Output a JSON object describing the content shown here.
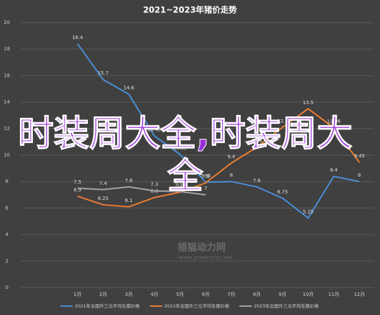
{
  "chart_data": {
    "type": "line",
    "title": "2021~2023年猪价走势",
    "categories": [
      "1月",
      "2月",
      "3月",
      "4月",
      "5月",
      "6月",
      "7月",
      "8月",
      "9月",
      "10月",
      "11月",
      "12月"
    ],
    "series": [
      {
        "name": "2021年全国外三元平均生猪价格",
        "color": "#4a90d9",
        "values": [
          18.4,
          15.7,
          14.6,
          11.45,
          10.05,
          7.95,
          8.0,
          7.6,
          6.75,
          5.25,
          8.4,
          8.0
        ]
      },
      {
        "name": "2022年全国外三元平均生猪价格",
        "color": "#ed7d31",
        "values": [
          6.9,
          6.25,
          6.1,
          6.8,
          7.2,
          7.9,
          9.4,
          10.6,
          12.1,
          13.5,
          12.06,
          9.45
        ]
      },
      {
        "name": "2023年全国外三元平均生猪价格",
        "color": "#a5a5a5",
        "values": [
          7.5,
          7.4,
          7.6,
          7.3,
          7.25,
          7.0,
          null,
          null,
          null,
          null,
          null,
          null
        ]
      }
    ],
    "ylim": [
      0,
      20
    ],
    "yticks": [
      0,
      2,
      4,
      6,
      8,
      10,
      12,
      14,
      16,
      18,
      20
    ],
    "grid": true,
    "overlay_text": "时装周大全,时装周大全",
    "watermark": "猎猫动力网",
    "watermark_url": "www.powerpigs.net"
  }
}
